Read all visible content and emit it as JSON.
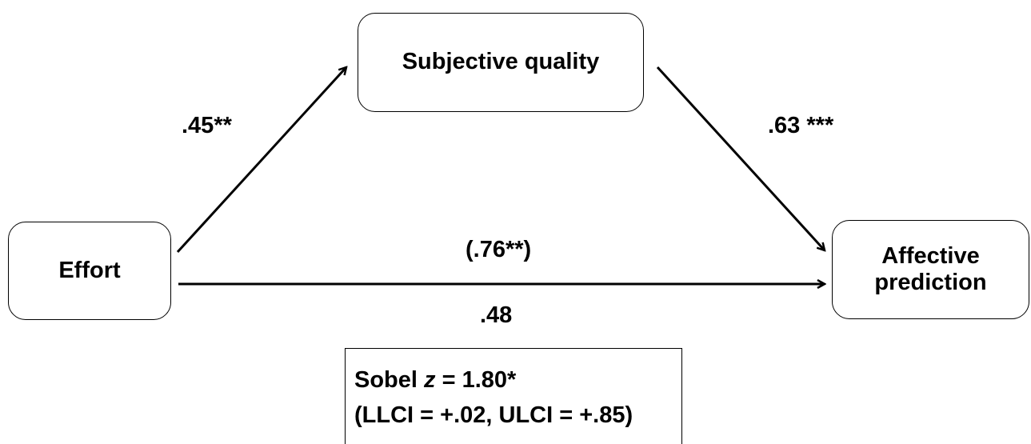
{
  "nodes": {
    "mediator": "Subjective quality",
    "predictor": "Effort",
    "outcome_line1": "Affective",
    "outcome_line2": "prediction"
  },
  "paths": {
    "a": ".45**",
    "b": ".63 ***",
    "c_total": "(.76**)",
    "c_direct": ".48"
  },
  "sobel": {
    "prefix": "Sobel ",
    "z_symbol": "z",
    "z_value": " = 1.80*",
    "ci": "(LLCI = +.02, ULCI = +.85)"
  }
}
